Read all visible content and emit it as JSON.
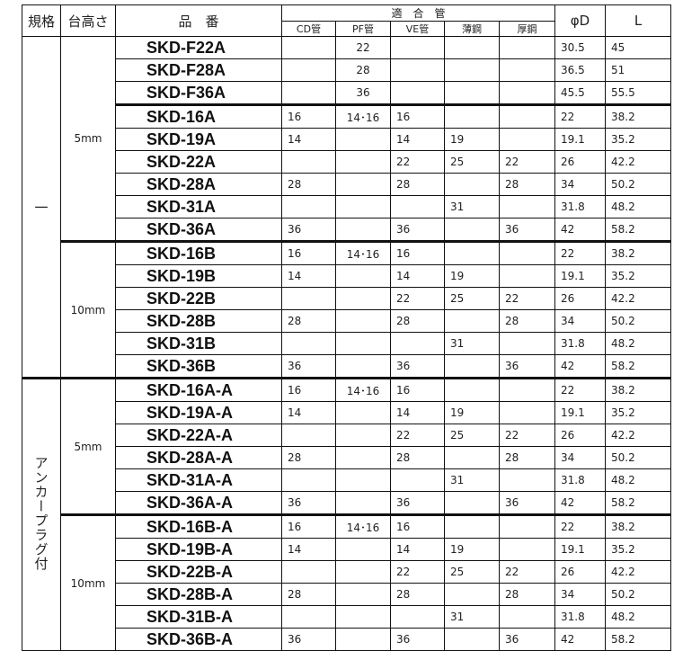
{
  "headers": {
    "spec": "規格",
    "height": "台高さ",
    "part": "品　番",
    "fit": "適　合　管",
    "cd": "CD管",
    "pf": "PF管",
    "ve": "VE管",
    "thin": "薄鋼",
    "thick": "厚鋼",
    "d": "φD",
    "l": "L"
  },
  "groups": [
    {
      "spec": "一",
      "blocks": [
        {
          "height": "5mm",
          "rows": [
            {
              "part": "SKD-F22A",
              "cd": "",
              "pf": "22",
              "ve": "",
              "thin": "",
              "thick": "",
              "d": "30.5",
              "l": "45"
            },
            {
              "part": "SKD-F28A",
              "cd": "",
              "pf": "28",
              "ve": "",
              "thin": "",
              "thick": "",
              "d": "36.5",
              "l": "51"
            },
            {
              "part": "SKD-F36A",
              "cd": "",
              "pf": "36",
              "ve": "",
              "thin": "",
              "thick": "",
              "d": "45.5",
              "l": "55.5"
            },
            {
              "part": "SKD-16A",
              "cd": "16",
              "pf": "14･16",
              "ve": "16",
              "thin": "",
              "thick": "",
              "d": "22",
              "l": "38.2"
            },
            {
              "part": "SKD-19A",
              "cd": "14",
              "pf": "",
              "ve": "14",
              "thin": "19",
              "thick": "",
              "d": "19.1",
              "l": "35.2"
            },
            {
              "part": "SKD-22A",
              "cd": "",
              "pf": "",
              "ve": "22",
              "thin": "25",
              "thick": "22",
              "d": "26",
              "l": "42.2"
            },
            {
              "part": "SKD-28A",
              "cd": "28",
              "pf": "",
              "ve": "28",
              "thin": "",
              "thick": "28",
              "d": "34",
              "l": "50.2"
            },
            {
              "part": "SKD-31A",
              "cd": "",
              "pf": "",
              "ve": "",
              "thin": "31",
              "thick": "",
              "d": "31.8",
              "l": "48.2"
            },
            {
              "part": "SKD-36A",
              "cd": "36",
              "pf": "",
              "ve": "36",
              "thin": "",
              "thick": "36",
              "d": "42",
              "l": "58.2"
            }
          ]
        },
        {
          "height": "10mm",
          "rows": [
            {
              "part": "SKD-16B",
              "cd": "16",
              "pf": "14･16",
              "ve": "16",
              "thin": "",
              "thick": "",
              "d": "22",
              "l": "38.2"
            },
            {
              "part": "SKD-19B",
              "cd": "14",
              "pf": "",
              "ve": "14",
              "thin": "19",
              "thick": "",
              "d": "19.1",
              "l": "35.2"
            },
            {
              "part": "SKD-22B",
              "cd": "",
              "pf": "",
              "ve": "22",
              "thin": "25",
              "thick": "22",
              "d": "26",
              "l": "42.2"
            },
            {
              "part": "SKD-28B",
              "cd": "28",
              "pf": "",
              "ve": "28",
              "thin": "",
              "thick": "28",
              "d": "34",
              "l": "50.2"
            },
            {
              "part": "SKD-31B",
              "cd": "",
              "pf": "",
              "ve": "",
              "thin": "31",
              "thick": "",
              "d": "31.8",
              "l": "48.2"
            },
            {
              "part": "SKD-36B",
              "cd": "36",
              "pf": "",
              "ve": "36",
              "thin": "",
              "thick": "36",
              "d": "42",
              "l": "58.2"
            }
          ]
        }
      ]
    },
    {
      "spec": "アンカープラグ付",
      "blocks": [
        {
          "height": "5mm",
          "rows": [
            {
              "part": "SKD-16A-A",
              "cd": "16",
              "pf": "14･16",
              "ve": "16",
              "thin": "",
              "thick": "",
              "d": "22",
              "l": "38.2"
            },
            {
              "part": "SKD-19A-A",
              "cd": "14",
              "pf": "",
              "ve": "14",
              "thin": "19",
              "thick": "",
              "d": "19.1",
              "l": "35.2"
            },
            {
              "part": "SKD-22A-A",
              "cd": "",
              "pf": "",
              "ve": "22",
              "thin": "25",
              "thick": "22",
              "d": "26",
              "l": "42.2"
            },
            {
              "part": "SKD-28A-A",
              "cd": "28",
              "pf": "",
              "ve": "28",
              "thin": "",
              "thick": "28",
              "d": "34",
              "l": "50.2"
            },
            {
              "part": "SKD-31A-A",
              "cd": "",
              "pf": "",
              "ve": "",
              "thin": "31",
              "thick": "",
              "d": "31.8",
              "l": "48.2"
            },
            {
              "part": "SKD-36A-A",
              "cd": "36",
              "pf": "",
              "ve": "36",
              "thin": "",
              "thick": "36",
              "d": "42",
              "l": "58.2"
            }
          ]
        },
        {
          "height": "10mm",
          "rows": [
            {
              "part": "SKD-16B-A",
              "cd": "16",
              "pf": "14･16",
              "ve": "16",
              "thin": "",
              "thick": "",
              "d": "22",
              "l": "38.2"
            },
            {
              "part": "SKD-19B-A",
              "cd": "14",
              "pf": "",
              "ve": "14",
              "thin": "19",
              "thick": "",
              "d": "19.1",
              "l": "35.2"
            },
            {
              "part": "SKD-22B-A",
              "cd": "",
              "pf": "",
              "ve": "22",
              "thin": "25",
              "thick": "22",
              "d": "26",
              "l": "42.2"
            },
            {
              "part": "SKD-28B-A",
              "cd": "28",
              "pf": "",
              "ve": "28",
              "thin": "",
              "thick": "28",
              "d": "34",
              "l": "50.2"
            },
            {
              "part": "SKD-31B-A",
              "cd": "",
              "pf": "",
              "ve": "",
              "thin": "31",
              "thick": "",
              "d": "31.8",
              "l": "48.2"
            },
            {
              "part": "SKD-36B-A",
              "cd": "36",
              "pf": "",
              "ve": "36",
              "thin": "",
              "thick": "36",
              "d": "42",
              "l": "58.2"
            }
          ]
        }
      ]
    }
  ]
}
